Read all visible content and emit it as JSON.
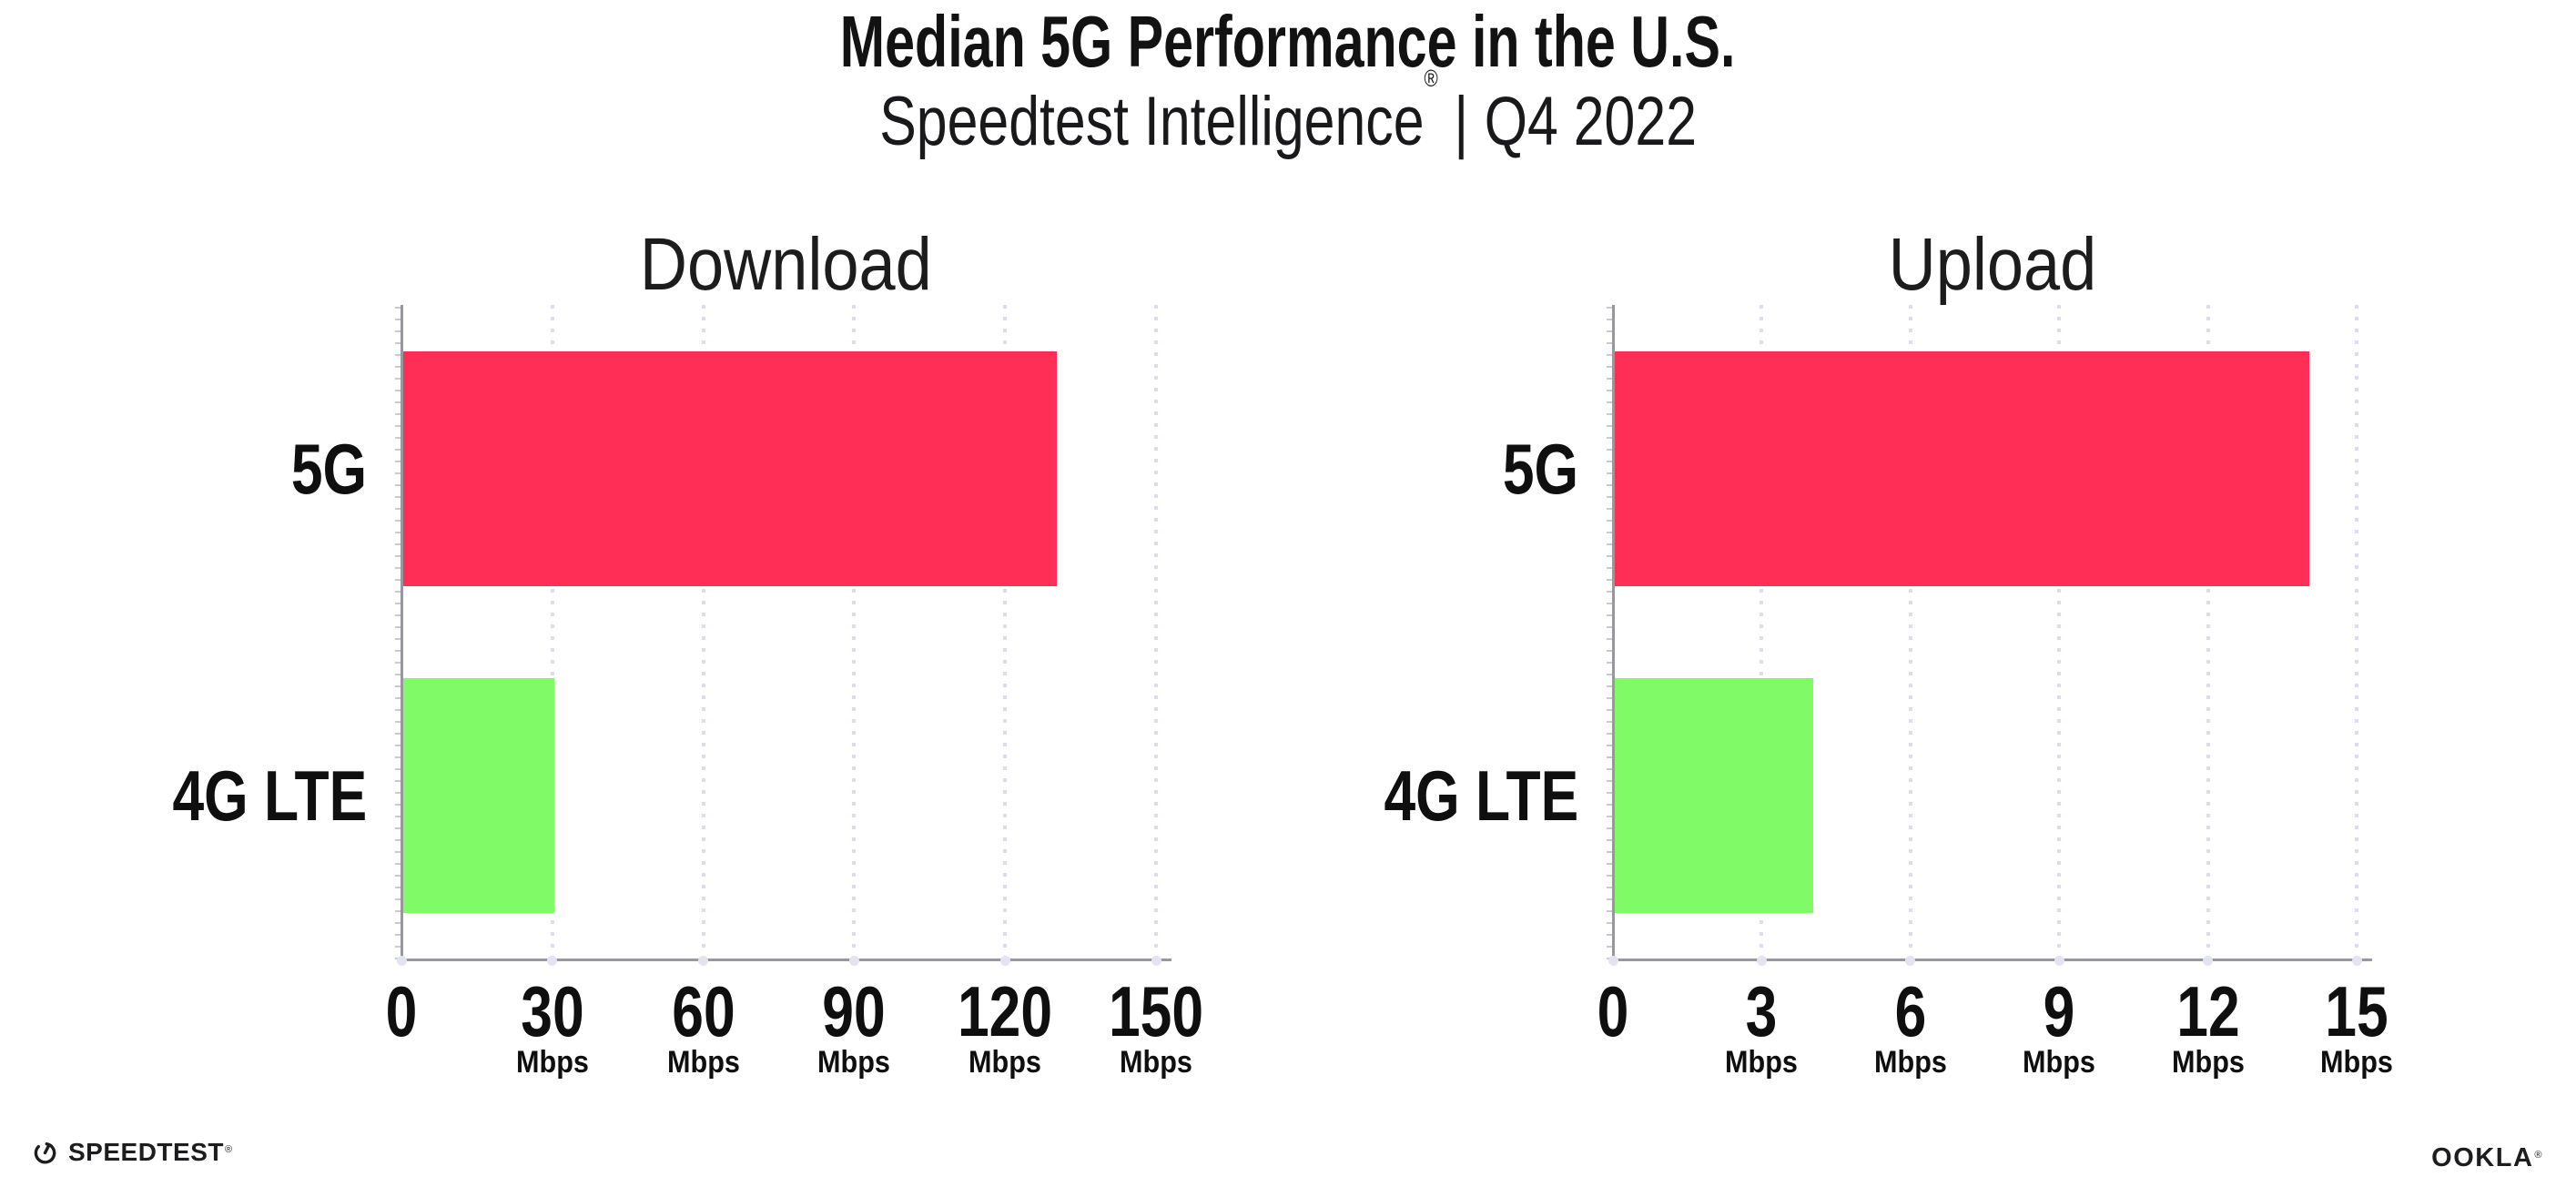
{
  "title": "Median 5G Performance in the U.S.",
  "subtitle": {
    "brand": "Speedtest Intelligence",
    "registered_mark": "®",
    "separator": "|",
    "period": "Q4 2022"
  },
  "footer": {
    "speedtest": {
      "label": "SPEEDTEST",
      "registered_mark": "®",
      "icon": "speedtest-gauge-icon"
    },
    "ookla": {
      "label": "OOKLA",
      "registered_mark": "®"
    }
  },
  "colors": {
    "bar_5g": "#ff2e56",
    "bar_4g_lte": "#80fa66",
    "axis": "#97979d",
    "gridline_dots": "#dcdcea",
    "text": "#141414"
  },
  "chart_data": [
    {
      "type": "bar",
      "orientation": "horizontal",
      "title": "Download",
      "categories": [
        "5G",
        "4G LTE"
      ],
      "values": [
        130,
        30
      ],
      "unit_label": "Mbps",
      "xlabel": "",
      "ylabel": "",
      "xlim": [
        0,
        150
      ],
      "xticks": [
        0,
        30,
        60,
        90,
        120,
        150
      ],
      "grid": "vertical-dotted",
      "legend": "none",
      "bar_colors": [
        "#ff2e56",
        "#80fa66"
      ]
    },
    {
      "type": "bar",
      "orientation": "horizontal",
      "title": "Upload",
      "categories": [
        "5G",
        "4G LTE"
      ],
      "values": [
        14,
        4
      ],
      "unit_label": "Mbps",
      "xlabel": "",
      "ylabel": "",
      "xlim": [
        0,
        15
      ],
      "xticks": [
        0,
        3,
        6,
        9,
        12,
        15
      ],
      "grid": "vertical-dotted",
      "legend": "none",
      "bar_colors": [
        "#ff2e56",
        "#80fa66"
      ]
    }
  ]
}
